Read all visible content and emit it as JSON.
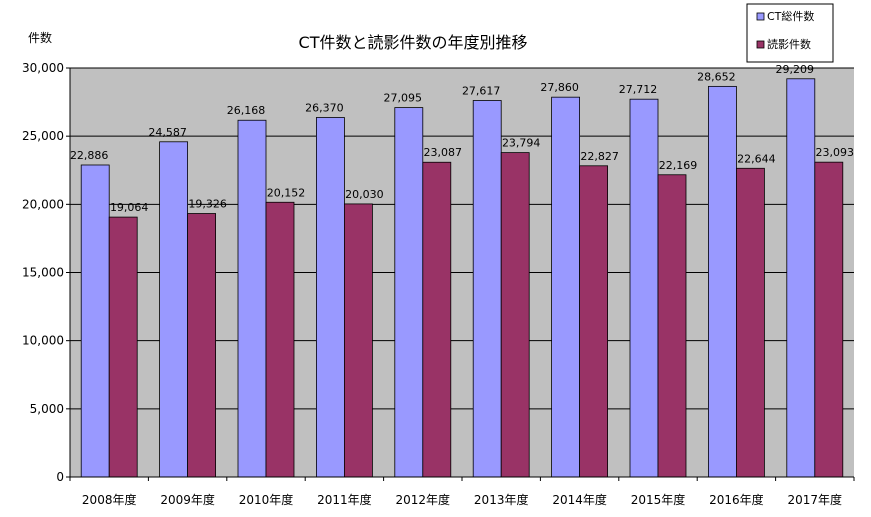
{
  "chart_data": {
    "type": "bar",
    "title": "CT件数と読影件数の年度別推移",
    "ylabel": "件数",
    "xlabel": "",
    "categories": [
      "2008年度",
      "2009年度",
      "2010年度",
      "2011年度",
      "2012年度",
      "2013年度",
      "2014年度",
      "2015年度",
      "2016年度",
      "2017年度"
    ],
    "series": [
      {
        "name": "CT総件数",
        "color": "#9999ff",
        "values": [
          22886,
          24587,
          26168,
          26370,
          27095,
          27617,
          27860,
          27712,
          28652,
          29209
        ]
      },
      {
        "name": "読影件数",
        "color": "#993366",
        "values": [
          19064,
          19326,
          20152,
          20030,
          23087,
          23794,
          22827,
          22169,
          22644,
          23093
        ]
      }
    ],
    "data_labels": {
      "CT総件数": [
        "22,886",
        "24,587",
        "26,168",
        "26,370",
        "27,095",
        "27,617",
        "27,860",
        "27,712",
        "28,652",
        "29,209"
      ],
      "読影件数": [
        "19,064",
        "19,326",
        "20,152",
        "20,030",
        "23,087",
        "23,794",
        "22,827",
        "22,169",
        "22,644",
        "23,093"
      ]
    },
    "ylim": [
      0,
      30000
    ],
    "yticks": [
      0,
      5000,
      10000,
      15000,
      20000,
      25000,
      30000
    ],
    "ytick_labels": [
      "0",
      "5,000",
      "10,000",
      "15,000",
      "20,000",
      "25,000",
      "30,000"
    ],
    "grid": true,
    "legend_position": "top-right",
    "plot_background": "#c0c0c0"
  }
}
